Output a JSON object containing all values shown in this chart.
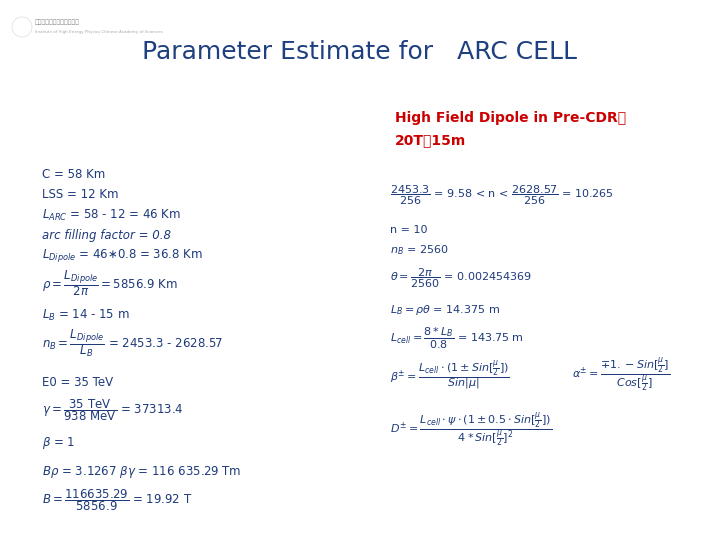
{
  "title": "Parameter Estimate for   ARC CELL",
  "title_color": "#1e4080",
  "title_fontsize": 18,
  "bg_color": "#ffffff",
  "red_color": "#cc0000",
  "blue_color": "#1e3a7a",
  "fig_width": 7.2,
  "fig_height": 5.4,
  "dpi": 100,
  "highlight_line1": "High Field Dipole in Pre-CDR：",
  "highlight_line2": "20T，15m"
}
